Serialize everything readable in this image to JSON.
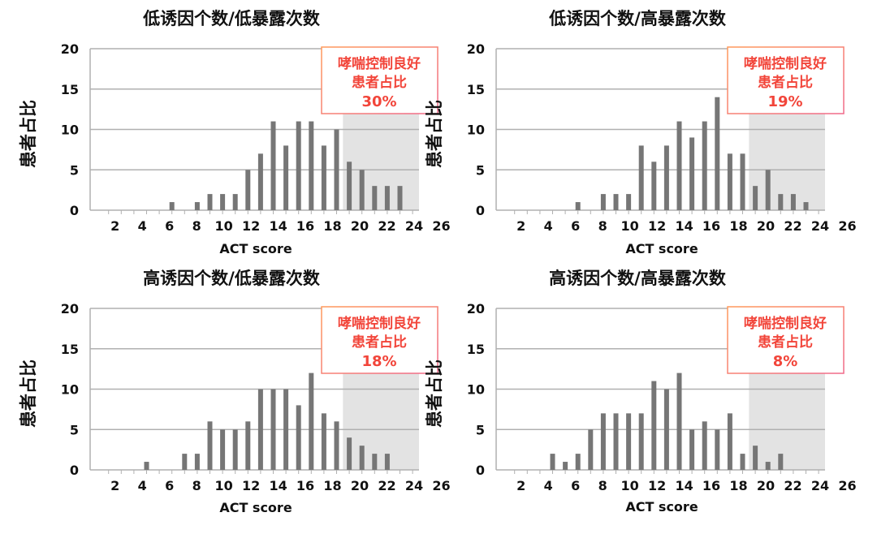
{
  "chart_data": [
    {
      "type": "bar",
      "title": "低诱因个数/低暴露次数",
      "xlabel": "ACT score",
      "ylabel": "患者占比",
      "ylim": [
        0,
        20
      ],
      "yticks": [
        "0",
        "5",
        "10",
        "15",
        "20"
      ],
      "xticks": [
        "2",
        "4",
        "6",
        "8",
        "10",
        "12",
        "14",
        "16",
        "18",
        "20",
        "22",
        "24",
        "26"
      ],
      "scores": [
        6,
        8,
        9,
        10,
        11,
        12,
        13,
        14,
        15,
        16,
        17,
        18,
        19,
        20,
        21,
        22,
        23,
        24
      ],
      "values": [
        1,
        1,
        2,
        2,
        2,
        5,
        7,
        11,
        8,
        11,
        11,
        8,
        10,
        6,
        5,
        3,
        3,
        3
      ],
      "shaded_region": [
        19.5,
        25.5
      ],
      "annotation": {
        "line1": "哮喘控制良好",
        "line2": "患者占比",
        "line3": "30%"
      }
    },
    {
      "type": "bar",
      "title": "低诱因个数/高暴露次数",
      "xlabel": "ACT score",
      "ylabel": "患者占比",
      "ylim": [
        0,
        20
      ],
      "yticks": [
        "0",
        "5",
        "10",
        "15",
        "20"
      ],
      "xticks": [
        "2",
        "4",
        "6",
        "8",
        "10",
        "12",
        "14",
        "16",
        "18",
        "20",
        "22",
        "24",
        "26"
      ],
      "scores": [
        6,
        8,
        9,
        10,
        11,
        12,
        13,
        14,
        15,
        16,
        17,
        18,
        19,
        20,
        21,
        22,
        23,
        24
      ],
      "values": [
        1,
        2,
        2,
        2,
        8,
        6,
        8,
        11,
        9,
        11,
        14,
        7,
        7,
        3,
        5,
        2,
        2,
        1
      ],
      "shaded_region": [
        19.5,
        25.5
      ],
      "annotation": {
        "line1": "哮喘控制良好",
        "line2": "患者占比",
        "line3": "19%"
      }
    },
    {
      "type": "bar",
      "title": "高诱因个数/低暴露次数",
      "xlabel": "ACT score",
      "ylabel": "患者占比",
      "ylim": [
        0,
        20
      ],
      "yticks": [
        "0",
        "5",
        "10",
        "15",
        "20"
      ],
      "xticks": [
        "2",
        "4",
        "6",
        "8",
        "10",
        "12",
        "14",
        "16",
        "18",
        "20",
        "22",
        "24",
        "26"
      ],
      "scores": [
        4,
        7,
        8,
        9,
        10,
        11,
        12,
        13,
        14,
        15,
        16,
        17,
        18,
        19,
        20,
        21,
        22,
        23
      ],
      "values": [
        1,
        2,
        2,
        6,
        5,
        5,
        6,
        10,
        10,
        10,
        8,
        12,
        7,
        6,
        4,
        3,
        2,
        2
      ],
      "shaded_region": [
        19.5,
        25.5
      ],
      "annotation": {
        "line1": "哮喘控制良好",
        "line2": "患者占比",
        "line3": "18%"
      }
    },
    {
      "type": "bar",
      "title": "高诱因个数/高暴露次数",
      "xlabel": "ACT score",
      "ylabel": "患者占比",
      "ylim": [
        0,
        20
      ],
      "yticks": [
        "0",
        "5",
        "10",
        "15",
        "20"
      ],
      "xticks": [
        "2",
        "4",
        "6",
        "8",
        "10",
        "12",
        "14",
        "16",
        "18",
        "20",
        "22",
        "24",
        "26"
      ],
      "scores": [
        4,
        5,
        6,
        7,
        8,
        9,
        10,
        11,
        12,
        13,
        14,
        15,
        16,
        17,
        18,
        19,
        20,
        21,
        22
      ],
      "values": [
        2,
        1,
        2,
        5,
        7,
        7,
        7,
        7,
        11,
        10,
        12,
        5,
        6,
        5,
        7,
        2,
        3,
        1,
        2
      ],
      "shaded_region": [
        19.5,
        25.5
      ],
      "annotation": {
        "line1": "哮喘控制良好",
        "line2": "患者占比",
        "line3": "8%"
      }
    }
  ],
  "colors": {
    "bar": "#767676",
    "grid": "#b0b0b0",
    "shade": "#e3e3e3",
    "annotation_text": "#f2453a",
    "annotation_border_start": "#ff9a5c",
    "annotation_border_end": "#f06a8a"
  }
}
